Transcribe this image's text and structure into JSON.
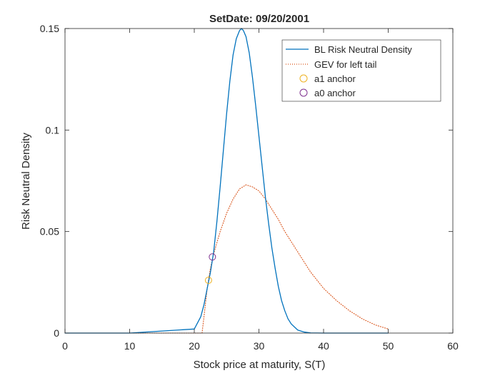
{
  "chart_data": {
    "type": "line",
    "title": "SetDate: 09/20/2001",
    "xlabel": "Stock price at maturity, S(T)",
    "ylabel": "Risk Neutral Density",
    "xlim": [
      0,
      60
    ],
    "ylim": [
      0,
      0.15
    ],
    "xticks": [
      0,
      10,
      20,
      30,
      40,
      50,
      60
    ],
    "xtick_labels": [
      "0",
      "10",
      "20",
      "30",
      "40",
      "50",
      "60"
    ],
    "yticks": [
      0,
      0.05,
      0.1,
      0.15
    ],
    "ytick_labels": [
      "0",
      "0.05",
      "0.1",
      "0.15"
    ],
    "grid": false,
    "legend_position": "top-right",
    "series": [
      {
        "name": "BL Risk Neutral Density",
        "style": "solid",
        "color": "#0072BD",
        "x": [
          0,
          10,
          20,
          21,
          21.5,
          22,
          22.5,
          23,
          23.5,
          24,
          24.5,
          25,
          25.5,
          26,
          26.5,
          27,
          27.3,
          27.6,
          28,
          28.5,
          29,
          29.5,
          30,
          30.5,
          31,
          31.5,
          32,
          32.5,
          33,
          33.5,
          34,
          34.5,
          35,
          36,
          37,
          38,
          40,
          45,
          50
        ],
        "y": [
          0,
          0,
          0.002,
          0.008,
          0.014,
          0.022,
          0.03,
          0.04,
          0.055,
          0.072,
          0.09,
          0.108,
          0.124,
          0.137,
          0.145,
          0.149,
          0.15,
          0.149,
          0.146,
          0.138,
          0.126,
          0.112,
          0.097,
          0.082,
          0.067,
          0.054,
          0.042,
          0.032,
          0.023,
          0.016,
          0.011,
          0.007,
          0.0045,
          0.0015,
          0.0005,
          0.0001,
          0,
          0,
          0
        ]
      },
      {
        "name": "GEV for left tail",
        "style": "dotted",
        "color": "#D95319",
        "x": [
          0,
          21.2,
          21.5,
          22,
          22.5,
          23,
          24,
          25,
          26,
          27,
          28,
          29,
          30,
          31,
          32,
          33,
          34,
          35,
          36,
          37,
          38,
          39,
          40,
          42,
          44,
          46,
          48,
          50
        ],
        "y": [
          0,
          0,
          0.008,
          0.022,
          0.032,
          0.039,
          0.05,
          0.059,
          0.066,
          0.071,
          0.073,
          0.072,
          0.07,
          0.066,
          0.061,
          0.056,
          0.05,
          0.045,
          0.04,
          0.035,
          0.03,
          0.026,
          0.022,
          0.016,
          0.011,
          0.007,
          0.004,
          0.002
        ]
      }
    ],
    "markers": [
      {
        "name": "a1 anchor",
        "color": "#EDB120",
        "x": 22.2,
        "y": 0.026
      },
      {
        "name": "a0 anchor",
        "color": "#7E2F8E",
        "x": 22.8,
        "y": 0.0375
      }
    ]
  }
}
